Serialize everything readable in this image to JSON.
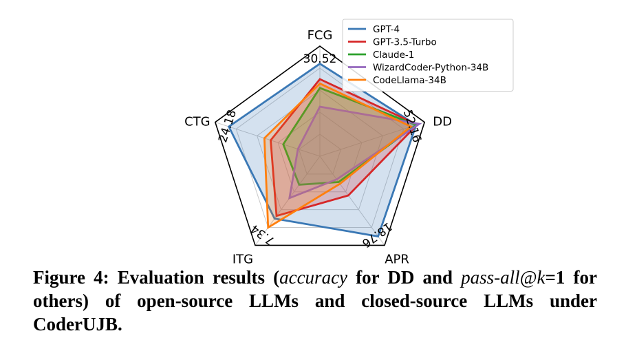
{
  "chart_data": {
    "type": "radar",
    "axes": [
      "FCG",
      "DD",
      "APR",
      "ITG",
      "CTG"
    ],
    "max_values": [
      "30.52",
      "52.16",
      "18.76",
      "7.34",
      "24.18"
    ],
    "grid": true,
    "legend_position": "top-right",
    "series": [
      {
        "name": "GPT-4",
        "color": "#3a78b5",
        "fill": true,
        "values": [
          0.84,
          0.92,
          0.9,
          0.7,
          0.87
        ]
      },
      {
        "name": "GPT-3.5-Turbo",
        "color": "#d62728",
        "fill": true,
        "values": [
          0.7,
          0.93,
          0.44,
          0.67,
          0.47
        ]
      },
      {
        "name": "Claude-1",
        "color": "#2ca02c",
        "fill": true,
        "values": [
          0.62,
          0.92,
          0.29,
          0.32,
          0.35
        ]
      },
      {
        "name": "WizardCoder-Python-34B",
        "color": "#9467bd",
        "fill": true,
        "values": [
          0.45,
          0.95,
          0.26,
          0.47,
          0.21
        ]
      },
      {
        "name": "CodeLlama-34B",
        "color": "#ff7f0e",
        "fill": true,
        "values": [
          0.66,
          0.87,
          0.31,
          0.8,
          0.53
        ]
      }
    ]
  },
  "caption": {
    "lead": "Figure 4: Evaluation results (",
    "metric1": "accuracy",
    "mid1": " for DD and ",
    "metric2": "pass-all@k",
    "eq": "=1 for others) of open-source LLMs and closed-source LLMs under CoderUJB."
  }
}
